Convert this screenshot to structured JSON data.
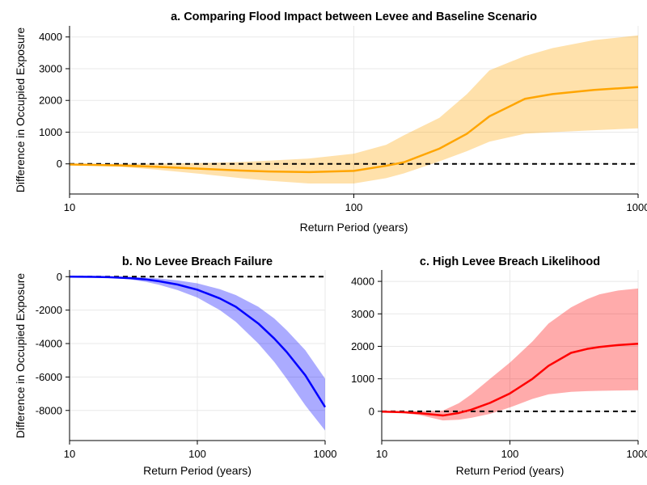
{
  "chart_data": [
    {
      "id": "a",
      "type": "line",
      "title": "a. Comparing Flood Impact between Levee and Baseline Scenario",
      "xlabel": "Return Period (years)",
      "ylabel": "Difference in Occupied Exposure",
      "xscale": "log",
      "xlim": [
        10,
        1000
      ],
      "ylim": [
        -950,
        4350
      ],
      "xticks": [
        10,
        100,
        1000
      ],
      "xtick_labels": [
        "10",
        "100",
        "1000"
      ],
      "yticks": [
        0,
        1000,
        2000,
        3000,
        4000
      ],
      "ytick_labels": [
        "0",
        "1000",
        "2000",
        "3000",
        "4000"
      ],
      "grid": true,
      "color": "#ffa500",
      "band_color": "#ffa500",
      "reference_line": 0,
      "series": [
        {
          "x": [
            10,
            15,
            20,
            30,
            40,
            50,
            70,
            100,
            130,
            150,
            200,
            250,
            300,
            400,
            500,
            700,
            1000
          ],
          "y": [
            -20,
            -50,
            -90,
            -160,
            -210,
            -240,
            -260,
            -220,
            -60,
            50,
            480,
            950,
            1500,
            2050,
            2200,
            2330,
            2420
          ],
          "lower": [
            -30,
            -90,
            -180,
            -330,
            -450,
            -530,
            -620,
            -620,
            -450,
            -300,
            80,
            400,
            700,
            950,
            1000,
            1060,
            1120
          ],
          "upper": [
            -10,
            -10,
            0,
            30,
            60,
            100,
            170,
            320,
            600,
            900,
            1450,
            2200,
            2950,
            3400,
            3650,
            3900,
            4050
          ]
        }
      ]
    },
    {
      "id": "b",
      "type": "line",
      "title": "b. No Levee Breach Failure",
      "xlabel": "Return Period (years)",
      "ylabel": "Difference in Occupied Exposure",
      "xscale": "log",
      "xlim": [
        10,
        1000
      ],
      "ylim": [
        -9800,
        400
      ],
      "xticks": [
        10,
        100,
        1000
      ],
      "xtick_labels": [
        "10",
        "100",
        "1000"
      ],
      "yticks": [
        0,
        -2000,
        -4000,
        -6000,
        -8000
      ],
      "ytick_labels": [
        "0",
        "-2000",
        "-4000",
        "-6000",
        "-8000"
      ],
      "grid": true,
      "color": "#0000ff",
      "band_color": "#0000ff",
      "reference_line": 0,
      "series": [
        {
          "x": [
            10,
            15,
            20,
            30,
            40,
            50,
            70,
            100,
            150,
            200,
            300,
            400,
            500,
            700,
            1000
          ],
          "y": [
            0,
            -10,
            -30,
            -90,
            -170,
            -270,
            -470,
            -780,
            -1300,
            -1800,
            -2800,
            -3700,
            -4500,
            -5900,
            -7800
          ],
          "lower": [
            0,
            -20,
            -60,
            -170,
            -320,
            -480,
            -800,
            -1250,
            -2000,
            -2700,
            -4000,
            -5100,
            -6100,
            -7700,
            -9200
          ],
          "upper": [
            0,
            0,
            -5,
            -30,
            -60,
            -110,
            -220,
            -400,
            -750,
            -1100,
            -1800,
            -2500,
            -3200,
            -4400,
            -6100
          ]
        }
      ]
    },
    {
      "id": "c",
      "type": "line",
      "title": "c. High Levee Breach Likelihood",
      "xlabel": "Return Period (years)",
      "ylabel": "",
      "xscale": "log",
      "xlim": [
        10,
        1000
      ],
      "ylim": [
        -900,
        4350
      ],
      "xticks": [
        10,
        100,
        1000
      ],
      "xtick_labels": [
        "10",
        "100",
        "1000"
      ],
      "yticks": [
        0,
        1000,
        2000,
        3000,
        4000
      ],
      "ytick_labels": [
        "0",
        "1000",
        "2000",
        "3000",
        "4000"
      ],
      "grid": true,
      "color": "#ff0000",
      "band_color": "#ff0000",
      "reference_line": 0,
      "series": [
        {
          "x": [
            10,
            15,
            20,
            30,
            40,
            50,
            70,
            100,
            150,
            200,
            300,
            400,
            500,
            700,
            1000
          ],
          "y": [
            -10,
            -30,
            -60,
            -130,
            -50,
            50,
            260,
            550,
            1000,
            1400,
            1800,
            1920,
            1980,
            2040,
            2080
          ],
          "lower": [
            -20,
            -60,
            -120,
            -280,
            -260,
            -200,
            -80,
            120,
            380,
            520,
            600,
            620,
            630,
            640,
            650
          ],
          "upper": [
            0,
            0,
            0,
            20,
            250,
            520,
            1000,
            1500,
            2150,
            2700,
            3200,
            3450,
            3600,
            3720,
            3780
          ]
        }
      ]
    }
  ]
}
